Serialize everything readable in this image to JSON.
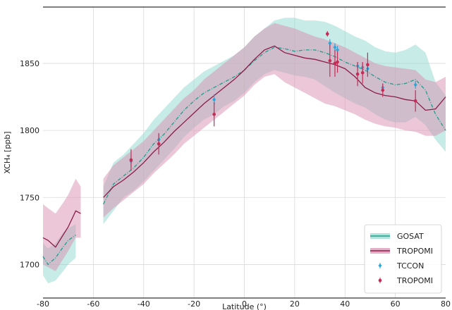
{
  "chart_data": {
    "type": "line",
    "title": "",
    "xlabel": "Latitude (°)",
    "ylabel": "XCH₄ [ppb]",
    "xlim": [
      -80,
      80
    ],
    "ylim": [
      1675,
      1892
    ],
    "xticks": [
      -80,
      -60,
      -40,
      -20,
      0,
      20,
      40,
      60,
      80
    ],
    "yticks": [
      1700,
      1750,
      1800,
      1850
    ],
    "grid": true,
    "legend_position": "bottom-right",
    "colors": {
      "gosat": "#1f9e8c",
      "gosat_band": "#8fd8cd",
      "tropomi": "#8a1d4a",
      "tropomi_band": "#d98fb0",
      "tccon": "#2aa7d8",
      "tropomi_points": "#c42b55"
    },
    "series": [
      {
        "name": "GOSAT",
        "style": "dash-dot line with shaded band",
        "segments": [
          {
            "x": [
              -80,
              -78,
              -75,
              -72,
              -70,
              -67
            ],
            "y": [
              1706,
              1700,
              1705,
              1713,
              1718,
              1722
            ],
            "lower": [
              1692,
              1686,
              1688,
              1695,
              1700,
              1705
            ],
            "upper": [
              1716,
              1712,
              1716,
              1724,
              1727,
              1730
            ]
          },
          {
            "x": [
              -56,
              -52,
              -48,
              -44,
              -40,
              -36,
              -32,
              -28,
              -24,
              -20,
              -16,
              -12,
              -8,
              -4,
              0,
              4,
              8,
              12,
              16,
              20,
              24,
              28,
              32,
              36,
              40,
              44,
              48,
              52,
              56,
              60,
              64,
              68,
              72,
              76,
              80
            ],
            "y": [
              1745,
              1760,
              1766,
              1772,
              1780,
              1790,
              1797,
              1806,
              1815,
              1822,
              1828,
              1832,
              1836,
              1840,
              1845,
              1852,
              1858,
              1862,
              1861,
              1859,
              1860,
              1860,
              1858,
              1855,
              1851,
              1848,
              1845,
              1840,
              1836,
              1834,
              1835,
              1838,
              1830,
              1812,
              1800
            ],
            "lower": [
              1730,
              1740,
              1750,
              1755,
              1762,
              1770,
              1778,
              1786,
              1795,
              1802,
              1808,
              1812,
              1818,
              1822,
              1828,
              1836,
              1842,
              1845,
              1843,
              1841,
              1840,
              1838,
              1833,
              1828,
              1824,
              1820,
              1817,
              1812,
              1808,
              1806,
              1806,
              1810,
              1804,
              1793,
              1784
            ],
            "upper": [
              1758,
              1776,
              1782,
              1790,
              1798,
              1808,
              1816,
              1824,
              1832,
              1838,
              1844,
              1848,
              1852,
              1856,
              1862,
              1870,
              1876,
              1882,
              1884,
              1884,
              1882,
              1882,
              1881,
              1878,
              1874,
              1870,
              1867,
              1862,
              1859,
              1858,
              1860,
              1864,
              1858,
              1836,
              1826
            ]
          }
        ]
      },
      {
        "name": "TROPOMI",
        "style": "solid line with shaded band",
        "segments": [
          {
            "x": [
              -80,
              -78,
              -75,
              -72,
              -70,
              -67,
              -65
            ],
            "y": [
              1720,
              1718,
              1713,
              1722,
              1728,
              1740,
              1738
            ],
            "lower": [
              1700,
              1698,
              1695,
              1704,
              1710,
              1720,
              1720
            ],
            "upper": [
              1745,
              1742,
              1738,
              1746,
              1752,
              1764,
              1758
            ]
          },
          {
            "x": [
              -56,
              -52,
              -48,
              -44,
              -40,
              -36,
              -32,
              -28,
              -24,
              -20,
              -16,
              -12,
              -8,
              -4,
              0,
              4,
              8,
              12,
              16,
              20,
              24,
              28,
              32,
              36,
              40,
              44,
              48,
              52,
              56,
              60,
              64,
              68,
              72,
              76,
              80
            ],
            "y": [
              1750,
              1758,
              1763,
              1769,
              1776,
              1784,
              1791,
              1799,
              1806,
              1813,
              1820,
              1826,
              1832,
              1838,
              1845,
              1853,
              1860,
              1863,
              1858,
              1856,
              1854,
              1853,
              1851,
              1849,
              1846,
              1840,
              1832,
              1828,
              1826,
              1825,
              1823,
              1822,
              1815,
              1816,
              1825
            ],
            "lower": [
              1735,
              1742,
              1748,
              1754,
              1760,
              1768,
              1775,
              1782,
              1790,
              1796,
              1802,
              1808,
              1814,
              1820,
              1826,
              1834,
              1840,
              1842,
              1836,
              1832,
              1828,
              1824,
              1820,
              1818,
              1815,
              1812,
              1808,
              1805,
              1803,
              1802,
              1800,
              1799,
              1796,
              1796,
              1800
            ],
            "upper": [
              1764,
              1774,
              1780,
              1786,
              1792,
              1800,
              1808,
              1816,
              1824,
              1830,
              1838,
              1844,
              1850,
              1856,
              1862,
              1870,
              1876,
              1880,
              1878,
              1876,
              1873,
              1870,
              1868,
              1865,
              1862,
              1858,
              1854,
              1850,
              1848,
              1847,
              1846,
              1845,
              1838,
              1836,
              1840
            ]
          }
        ]
      }
    ],
    "points": [
      {
        "name": "TCCON",
        "marker": "diamond",
        "data": [
          {
            "x": -45,
            "y": 1777,
            "err": 4
          },
          {
            "x": -34,
            "y": 1793,
            "err": 4
          },
          {
            "x": -12,
            "y": 1823,
            "err": 4
          },
          {
            "x": 34,
            "y": 1865,
            "err": 3
          },
          {
            "x": 36,
            "y": 1862,
            "err": 3
          },
          {
            "x": 37,
            "y": 1860,
            "err": 3
          },
          {
            "x": 45,
            "y": 1848,
            "err": 3
          },
          {
            "x": 47,
            "y": 1847,
            "err": 3
          },
          {
            "x": 49,
            "y": 1846,
            "err": 3
          },
          {
            "x": 55,
            "y": 1832,
            "err": 3
          },
          {
            "x": 68,
            "y": 1834,
            "err": 3
          }
        ]
      },
      {
        "name": "TROPOMI",
        "marker": "dot",
        "data": [
          {
            "x": -45,
            "y": 1778,
            "err": 8
          },
          {
            "x": -34,
            "y": 1790,
            "err": 8
          },
          {
            "x": -12,
            "y": 1812,
            "err": 9
          },
          {
            "x": 33,
            "y": 1872,
            "err": 2
          },
          {
            "x": 34,
            "y": 1852,
            "err": 12
          },
          {
            "x": 36,
            "y": 1850,
            "err": 10
          },
          {
            "x": 37,
            "y": 1851,
            "err": 8
          },
          {
            "x": 45,
            "y": 1842,
            "err": 9
          },
          {
            "x": 47,
            "y": 1843,
            "err": 8
          },
          {
            "x": 49,
            "y": 1849,
            "err": 9
          },
          {
            "x": 55,
            "y": 1830,
            "err": 5
          },
          {
            "x": 68,
            "y": 1822,
            "err": 8
          }
        ]
      }
    ]
  }
}
